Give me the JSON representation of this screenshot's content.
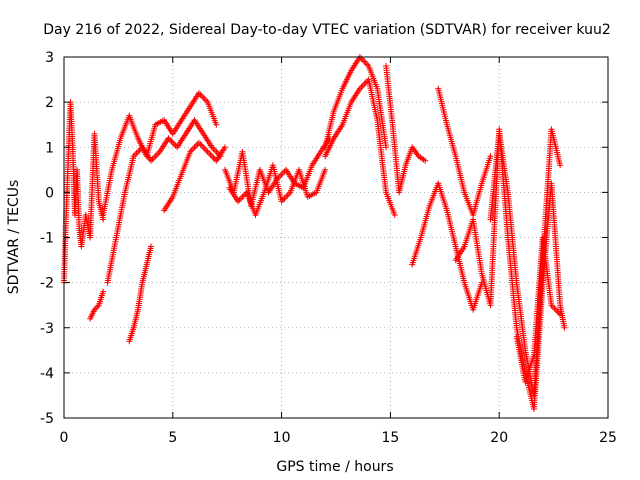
{
  "chart_data": {
    "type": "scatter",
    "title": "Day 216 of 2022, Sidereal Day-to-day VTEC variation (SDTVAR) for receiver kuu2",
    "xlabel": "GPS time / hours",
    "ylabel": "SDTVAR / TECUs",
    "xlim": [
      0,
      25
    ],
    "ylim": [
      -5,
      3
    ],
    "xticks": [
      0,
      5,
      10,
      15,
      20,
      25
    ],
    "yticks": [
      -5,
      -4,
      -3,
      -2,
      -1,
      0,
      1,
      2,
      3
    ],
    "grid": true,
    "marker": "+",
    "color": "#ff0000",
    "series": [
      {
        "x": [
          0,
          0.1,
          0.2,
          0.3,
          0.4,
          0.5,
          0.6,
          0.7,
          0.8,
          1.0,
          1.2,
          1.4,
          1.6,
          1.8
        ],
        "y": [
          -2.0,
          -0.5,
          0.8,
          2.0,
          1.0,
          -0.5,
          0.5,
          -0.8,
          -1.2,
          -0.5,
          -1.0,
          1.3,
          -0.2,
          -0.6
        ]
      },
      {
        "x": [
          1.2,
          1.4,
          1.6,
          1.8
        ],
        "y": [
          -2.8,
          -2.6,
          -2.5,
          -2.2
        ]
      },
      {
        "x": [
          1.8,
          2.2,
          2.6,
          3.0,
          3.4,
          3.8,
          4.2,
          4.6,
          5.0,
          5.4,
          5.8,
          6.2,
          6.6,
          7.0
        ],
        "y": [
          -0.5,
          0.5,
          1.2,
          1.7,
          1.2,
          0.8,
          1.5,
          1.6,
          1.3,
          1.6,
          1.9,
          2.2,
          2.0,
          1.5
        ]
      },
      {
        "x": [
          2.0,
          2.4,
          2.8,
          3.2,
          3.6,
          4.0,
          4.4,
          4.8,
          5.2,
          5.6,
          6.0,
          6.4,
          6.8,
          7.2
        ],
        "y": [
          -2.0,
          -1.0,
          0.0,
          0.8,
          1.0,
          0.7,
          0.9,
          1.2,
          1.0,
          1.3,
          1.6,
          1.3,
          1.0,
          0.8
        ]
      },
      {
        "x": [
          3.0,
          3.2,
          3.4,
          3.6,
          3.8,
          4.0
        ],
        "y": [
          -3.3,
          -3.0,
          -2.6,
          -2.0,
          -1.6,
          -1.2
        ]
      },
      {
        "x": [
          4.6,
          5.0,
          5.4,
          5.8,
          6.2,
          6.6,
          7.0,
          7.4
        ],
        "y": [
          -0.4,
          -0.1,
          0.4,
          0.9,
          1.1,
          0.9,
          0.7,
          1.0
        ]
      },
      {
        "x": [
          7.4,
          7.8,
          8.2,
          8.6,
          9.0,
          9.4,
          9.8,
          10.2,
          10.6,
          11.0,
          11.4,
          11.8,
          12.2
        ],
        "y": [
          0.5,
          0.0,
          0.9,
          -0.3,
          0.5,
          0.0,
          0.3,
          0.5,
          0.2,
          0.1,
          0.6,
          0.9,
          1.2
        ]
      },
      {
        "x": [
          7.6,
          8.0,
          8.4,
          8.8,
          9.2,
          9.6,
          10.0,
          10.4,
          10.8,
          11.2,
          11.6,
          12.0
        ],
        "y": [
          0.1,
          -0.2,
          0.0,
          -0.5,
          0.0,
          0.6,
          -0.2,
          0.0,
          0.5,
          -0.1,
          0.0,
          0.5
        ]
      },
      {
        "x": [
          12.0,
          12.4,
          12.8,
          13.2,
          13.6,
          14.0,
          14.4,
          14.8,
          15.2
        ],
        "y": [
          0.8,
          1.2,
          1.5,
          2.0,
          2.3,
          2.5,
          1.6,
          0.0,
          -0.5
        ]
      },
      {
        "x": [
          12.0,
          12.4,
          12.8,
          13.2,
          13.6,
          14.0,
          14.4,
          14.8
        ],
        "y": [
          1.0,
          1.8,
          2.3,
          2.7,
          3.0,
          2.8,
          2.3,
          1.0
        ]
      },
      {
        "x": [
          14.8,
          15.1,
          15.4,
          15.7,
          16.0,
          16.3,
          16.6
        ],
        "y": [
          2.8,
          1.5,
          0.0,
          0.6,
          1.0,
          0.8,
          0.7
        ]
      },
      {
        "x": [
          16.0,
          16.4,
          16.8,
          17.2,
          17.6,
          18.0,
          18.4,
          18.8,
          19.2
        ],
        "y": [
          -1.6,
          -1.0,
          -0.3,
          0.2,
          -0.4,
          -1.2,
          -2.0,
          -2.6,
          -2.0
        ]
      },
      {
        "x": [
          17.2,
          17.6,
          18.0,
          18.4,
          18.8,
          19.2,
          19.6
        ],
        "y": [
          2.3,
          1.5,
          0.8,
          0.0,
          -0.5,
          0.2,
          0.8
        ]
      },
      {
        "x": [
          18.0,
          18.4,
          18.8,
          19.2,
          19.6,
          20.0,
          20.4,
          20.8,
          21.2,
          21.6,
          22.0,
          22.4,
          22.8,
          23.0
        ],
        "y": [
          -1.5,
          -1.2,
          -0.6,
          -1.8,
          -2.5,
          1.4,
          -1.0,
          -3.0,
          -4.0,
          -4.8,
          -2.0,
          0.2,
          -2.5,
          -3.0
        ]
      },
      {
        "x": [
          19.6,
          20.0,
          20.4,
          20.8,
          21.2,
          21.6,
          22.0,
          22.4,
          22.8
        ],
        "y": [
          -0.6,
          1.3,
          0.0,
          -2.0,
          -3.5,
          -4.5,
          -1.5,
          1.4,
          0.6
        ]
      },
      {
        "x": [
          20.8,
          21.2,
          21.6,
          22.0,
          22.4,
          22.8
        ],
        "y": [
          -3.2,
          -4.2,
          -3.6,
          -1.0,
          -2.5,
          -2.7
        ]
      }
    ]
  }
}
